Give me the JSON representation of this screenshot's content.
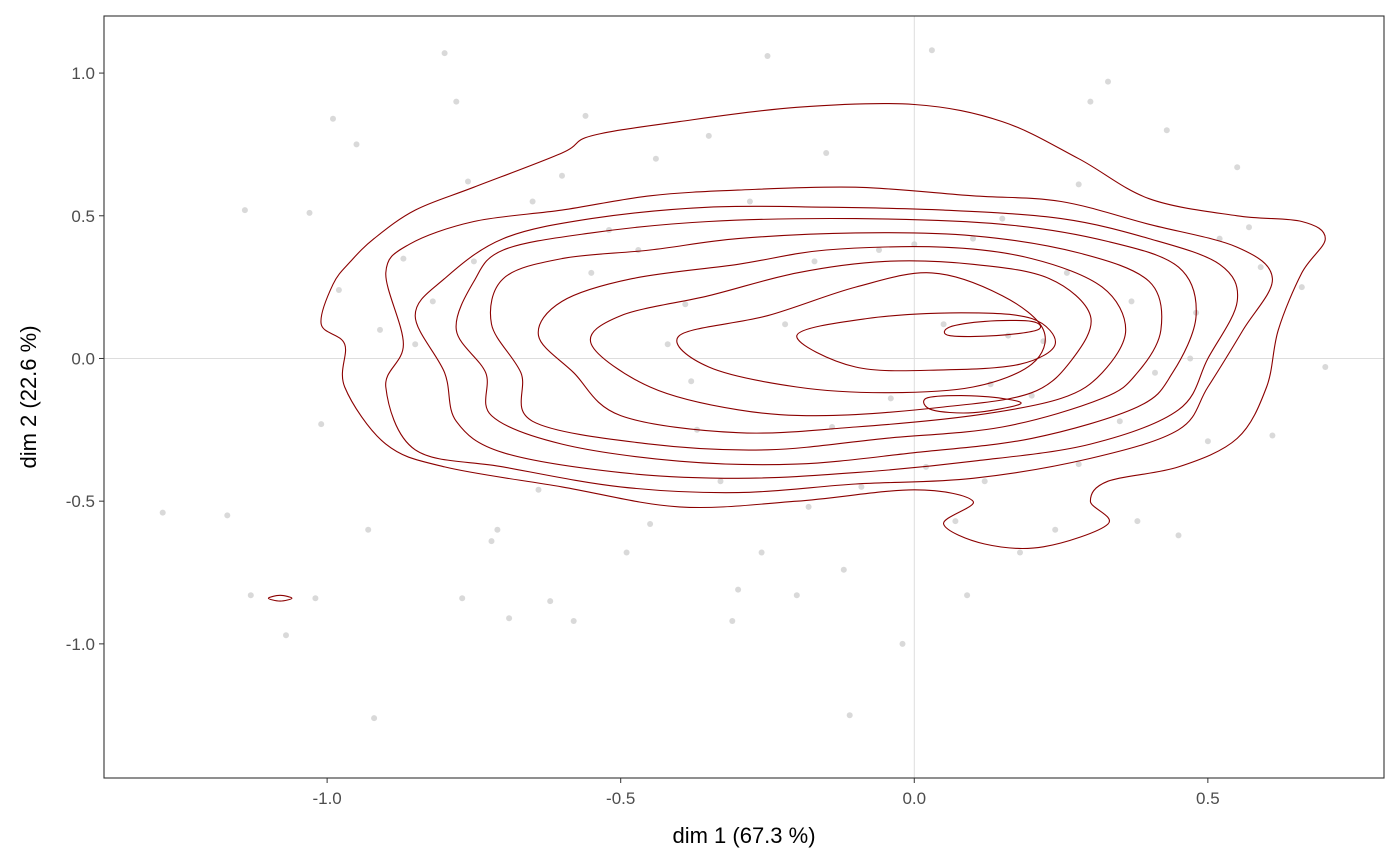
{
  "chart_data": {
    "type": "scatter",
    "title": "",
    "xlabel": "dim 1 (67.3 %)",
    "ylabel": "dim 2 (22.6 %)",
    "xlim": [
      -1.38,
      0.8
    ],
    "ylim": [
      -1.47,
      1.2
    ],
    "x_ticks": [
      -1.0,
      -0.5,
      0.0,
      0.5
    ],
    "x_tick_labels": [
      "-1.0",
      "-0.5",
      "0.0",
      "0.5"
    ],
    "y_ticks": [
      1.0,
      0.5,
      0.0,
      -0.5,
      -1.0
    ],
    "y_tick_labels": [
      "1.0",
      "0.5",
      "0.0",
      "-0.5",
      "-1.0"
    ],
    "reference_lines": {
      "x": 0,
      "y": 0
    },
    "grid": false,
    "colors": {
      "points": "#cccccc",
      "contours": "#8b0000",
      "panel_border": "#333333",
      "reference_line": "#dddddd"
    },
    "points": [
      [
        -1.28,
        -0.54
      ],
      [
        -1.17,
        -0.55
      ],
      [
        -1.14,
        0.52
      ],
      [
        -1.13,
        -0.83
      ],
      [
        -1.07,
        -0.97
      ],
      [
        -1.03,
        0.51
      ],
      [
        -1.02,
        -0.84
      ],
      [
        -1.01,
        -0.23
      ],
      [
        -0.99,
        0.84
      ],
      [
        -0.98,
        0.24
      ],
      [
        -0.93,
        -0.6
      ],
      [
        -0.92,
        -1.26
      ],
      [
        -0.91,
        0.1
      ],
      [
        -0.87,
        0.35
      ],
      [
        -0.82,
        0.2
      ],
      [
        -0.8,
        1.07
      ],
      [
        -0.78,
        0.9
      ],
      [
        -0.77,
        -0.84
      ],
      [
        -0.76,
        0.62
      ],
      [
        -0.75,
        0.34
      ],
      [
        -0.72,
        -0.64
      ],
      [
        -0.71,
        -0.6
      ],
      [
        -0.69,
        -0.91
      ],
      [
        -0.64,
        -0.46
      ],
      [
        -0.62,
        -0.85
      ],
      [
        -0.6,
        0.64
      ],
      [
        -0.58,
        -0.92
      ],
      [
        -0.56,
        0.85
      ],
      [
        -0.55,
        0.3
      ],
      [
        -0.52,
        0.45
      ],
      [
        -0.49,
        -0.68
      ],
      [
        -0.47,
        0.38
      ],
      [
        -0.45,
        -0.58
      ],
      [
        -0.42,
        0.05
      ],
      [
        -0.39,
        0.19
      ],
      [
        -0.37,
        -0.25
      ],
      [
        -0.35,
        0.78
      ],
      [
        -0.33,
        -0.43
      ],
      [
        -0.31,
        -0.92
      ],
      [
        -0.3,
        -0.81
      ],
      [
        -0.28,
        0.55
      ],
      [
        -0.26,
        -0.68
      ],
      [
        -0.25,
        1.06
      ],
      [
        -0.22,
        0.12
      ],
      [
        -0.2,
        -0.83
      ],
      [
        -0.18,
        -0.52
      ],
      [
        -0.17,
        0.34
      ],
      [
        -0.14,
        -0.24
      ],
      [
        -0.12,
        -0.74
      ],
      [
        -0.11,
        -1.25
      ],
      [
        -0.09,
        -0.45
      ],
      [
        -0.06,
        0.38
      ],
      [
        -0.04,
        -0.14
      ],
      [
        -0.02,
        -1.0
      ],
      [
        0.0,
        0.4
      ],
      [
        0.02,
        -0.38
      ],
      [
        0.03,
        1.08
      ],
      [
        0.05,
        0.12
      ],
      [
        0.07,
        -0.57
      ],
      [
        0.09,
        -0.83
      ],
      [
        0.1,
        0.42
      ],
      [
        0.13,
        -0.09
      ],
      [
        0.15,
        0.49
      ],
      [
        0.16,
        0.08
      ],
      [
        0.18,
        -0.68
      ],
      [
        0.2,
        -0.13
      ],
      [
        0.22,
        0.06
      ],
      [
        0.24,
        -0.6
      ],
      [
        0.26,
        0.3
      ],
      [
        0.28,
        -0.37
      ],
      [
        0.3,
        0.9
      ],
      [
        0.33,
        0.97
      ],
      [
        0.35,
        -0.22
      ],
      [
        0.37,
        0.2
      ],
      [
        0.38,
        -0.57
      ],
      [
        0.41,
        -0.05
      ],
      [
        0.43,
        0.8
      ],
      [
        0.45,
        -0.62
      ],
      [
        0.47,
        0.0
      ],
      [
        0.5,
        -0.29
      ],
      [
        0.52,
        0.42
      ],
      [
        0.55,
        0.67
      ],
      [
        0.57,
        0.46
      ],
      [
        0.59,
        0.32
      ],
      [
        0.61,
        -0.27
      ],
      [
        0.66,
        0.25
      ],
      [
        0.7,
        -0.03
      ],
      [
        -0.95,
        0.75
      ],
      [
        -0.85,
        0.05
      ],
      [
        -0.65,
        0.55
      ],
      [
        -0.44,
        0.7
      ],
      [
        -0.38,
        -0.08
      ],
      [
        -0.15,
        0.72
      ],
      [
        0.12,
        -0.43
      ],
      [
        0.28,
        0.61
      ],
      [
        0.48,
        0.16
      ]
    ],
    "contours": [
      [
        [
          -1.08,
          -0.83
        ],
        [
          -1.06,
          -0.84
        ],
        [
          -1.08,
          -0.85
        ],
        [
          -1.1,
          -0.84
        ]
      ],
      [
        [
          -1.01,
          0.12
        ],
        [
          -0.99,
          0.26
        ],
        [
          -0.96,
          0.34
        ],
        [
          -0.92,
          0.42
        ],
        [
          -0.85,
          0.52
        ],
        [
          -0.75,
          0.6
        ],
        [
          -0.6,
          0.72
        ],
        [
          -0.55,
          0.78
        ],
        [
          -0.4,
          0.83
        ],
        [
          -0.2,
          0.88
        ],
        [
          0.0,
          0.89
        ],
        [
          0.15,
          0.83
        ],
        [
          0.28,
          0.7
        ],
        [
          0.4,
          0.56
        ],
        [
          0.55,
          0.5
        ],
        [
          0.66,
          0.48
        ],
        [
          0.7,
          0.42
        ],
        [
          0.66,
          0.3
        ],
        [
          0.62,
          0.1
        ],
        [
          0.6,
          -0.1
        ],
        [
          0.55,
          -0.28
        ],
        [
          0.45,
          -0.38
        ],
        [
          0.33,
          -0.43
        ],
        [
          0.3,
          -0.5
        ],
        [
          0.33,
          -0.58
        ],
        [
          0.22,
          -0.66
        ],
        [
          0.12,
          -0.65
        ],
        [
          0.05,
          -0.58
        ],
        [
          0.1,
          -0.5
        ],
        [
          0.0,
          -0.46
        ],
        [
          -0.2,
          -0.5
        ],
        [
          -0.4,
          -0.52
        ],
        [
          -0.6,
          -0.45
        ],
        [
          -0.8,
          -0.38
        ],
        [
          -0.9,
          -0.3
        ],
        [
          -0.97,
          -0.1
        ],
        [
          -0.97,
          0.05
        ],
        [
          -1.01,
          0.12
        ]
      ],
      [
        [
          -0.9,
          0.3
        ],
        [
          -0.86,
          0.4
        ],
        [
          -0.75,
          0.48
        ],
        [
          -0.6,
          0.52
        ],
        [
          -0.45,
          0.57
        ],
        [
          -0.3,
          0.59
        ],
        [
          -0.1,
          0.6
        ],
        [
          0.1,
          0.57
        ],
        [
          0.25,
          0.55
        ],
        [
          0.4,
          0.47
        ],
        [
          0.55,
          0.39
        ],
        [
          0.61,
          0.28
        ],
        [
          0.56,
          0.1
        ],
        [
          0.5,
          -0.1
        ],
        [
          0.45,
          -0.25
        ],
        [
          0.3,
          -0.35
        ],
        [
          0.1,
          -0.42
        ],
        [
          -0.1,
          -0.44
        ],
        [
          -0.3,
          -0.47
        ],
        [
          -0.5,
          -0.45
        ],
        [
          -0.7,
          -0.38
        ],
        [
          -0.85,
          -0.32
        ],
        [
          -0.9,
          -0.1
        ],
        [
          -0.87,
          0.05
        ],
        [
          -0.9,
          0.3
        ]
      ],
      [
        [
          -0.8,
          0.28
        ],
        [
          -0.7,
          0.42
        ],
        [
          -0.55,
          0.49
        ],
        [
          -0.35,
          0.53
        ],
        [
          -0.15,
          0.53
        ],
        [
          0.05,
          0.52
        ],
        [
          0.25,
          0.49
        ],
        [
          0.4,
          0.42
        ],
        [
          0.52,
          0.33
        ],
        [
          0.55,
          0.2
        ],
        [
          0.5,
          0.0
        ],
        [
          0.45,
          -0.18
        ],
        [
          0.3,
          -0.3
        ],
        [
          0.1,
          -0.36
        ],
        [
          -0.1,
          -0.4
        ],
        [
          -0.3,
          -0.42
        ],
        [
          -0.5,
          -0.4
        ],
        [
          -0.7,
          -0.33
        ],
        [
          -0.78,
          -0.22
        ],
        [
          -0.8,
          -0.05
        ],
        [
          -0.85,
          0.15
        ],
        [
          -0.8,
          0.28
        ]
      ],
      [
        [
          -0.75,
          0.27
        ],
        [
          -0.7,
          0.38
        ],
        [
          -0.55,
          0.44
        ],
        [
          -0.35,
          0.48
        ],
        [
          -0.1,
          0.49
        ],
        [
          0.15,
          0.47
        ],
        [
          0.33,
          0.41
        ],
        [
          0.45,
          0.32
        ],
        [
          0.48,
          0.15
        ],
        [
          0.44,
          -0.05
        ],
        [
          0.38,
          -0.17
        ],
        [
          0.2,
          -0.28
        ],
        [
          0.0,
          -0.33
        ],
        [
          -0.2,
          -0.37
        ],
        [
          -0.4,
          -0.36
        ],
        [
          -0.6,
          -0.3
        ],
        [
          -0.72,
          -0.2
        ],
        [
          -0.73,
          -0.05
        ],
        [
          -0.78,
          0.1
        ],
        [
          -0.75,
          0.27
        ]
      ],
      [
        [
          -0.7,
          0.28
        ],
        [
          -0.6,
          0.35
        ],
        [
          -0.45,
          0.38
        ],
        [
          -0.3,
          0.42
        ],
        [
          -0.1,
          0.44
        ],
        [
          0.1,
          0.43
        ],
        [
          0.28,
          0.37
        ],
        [
          0.4,
          0.27
        ],
        [
          0.42,
          0.1
        ],
        [
          0.38,
          -0.05
        ],
        [
          0.32,
          -0.14
        ],
        [
          0.15,
          -0.24
        ],
        [
          -0.05,
          -0.28
        ],
        [
          -0.25,
          -0.32
        ],
        [
          -0.45,
          -0.3
        ],
        [
          -0.65,
          -0.22
        ],
        [
          -0.67,
          -0.05
        ],
        [
          -0.72,
          0.12
        ],
        [
          -0.7,
          0.28
        ]
      ],
      [
        [
          -0.6,
          0.2
        ],
        [
          -0.48,
          0.28
        ],
        [
          -0.3,
          0.33
        ],
        [
          -0.15,
          0.38
        ],
        [
          0.05,
          0.39
        ],
        [
          0.2,
          0.35
        ],
        [
          0.32,
          0.25
        ],
        [
          0.36,
          0.1
        ],
        [
          0.32,
          -0.05
        ],
        [
          0.25,
          -0.14
        ],
        [
          0.1,
          -0.2
        ],
        [
          -0.1,
          -0.24
        ],
        [
          -0.3,
          -0.26
        ],
        [
          -0.5,
          -0.2
        ],
        [
          -0.58,
          -0.05
        ],
        [
          -0.64,
          0.08
        ],
        [
          -0.6,
          0.2
        ]
      ],
      [
        [
          -0.5,
          0.15
        ],
        [
          -0.35,
          0.22
        ],
        [
          -0.2,
          0.3
        ],
        [
          -0.05,
          0.34
        ],
        [
          0.1,
          0.33
        ],
        [
          0.23,
          0.28
        ],
        [
          0.3,
          0.15
        ],
        [
          0.27,
          0.0
        ],
        [
          0.2,
          -0.12
        ],
        [
          0.05,
          -0.17
        ],
        [
          -0.15,
          -0.2
        ],
        [
          -0.3,
          -0.18
        ],
        [
          -0.45,
          -0.1
        ],
        [
          -0.55,
          0.05
        ],
        [
          -0.5,
          0.15
        ]
      ],
      [
        [
          -0.4,
          0.08
        ],
        [
          -0.25,
          0.15
        ],
        [
          -0.1,
          0.25
        ],
        [
          0.03,
          0.3
        ],
        [
          0.15,
          0.22
        ],
        [
          0.22,
          0.1
        ],
        [
          0.2,
          -0.02
        ],
        [
          0.1,
          -0.1
        ],
        [
          -0.05,
          -0.12
        ],
        [
          -0.2,
          -0.1
        ],
        [
          -0.35,
          -0.03
        ],
        [
          -0.4,
          0.08
        ]
      ],
      [
        [
          -0.2,
          0.08
        ],
        [
          -0.08,
          0.14
        ],
        [
          0.08,
          0.16
        ],
        [
          0.2,
          0.14
        ],
        [
          0.24,
          0.05
        ],
        [
          0.18,
          -0.02
        ],
        [
          0.05,
          -0.04
        ],
        [
          -0.1,
          -0.03
        ],
        [
          -0.2,
          0.08
        ]
      ],
      [
        [
          0.06,
          0.11
        ],
        [
          0.12,
          0.13
        ],
        [
          0.2,
          0.13
        ],
        [
          0.21,
          0.1
        ],
        [
          0.14,
          0.08
        ],
        [
          0.06,
          0.08
        ],
        [
          0.06,
          0.11
        ]
      ],
      [
        [
          0.02,
          -0.14
        ],
        [
          0.08,
          -0.13
        ],
        [
          0.15,
          -0.14
        ],
        [
          0.18,
          -0.16
        ],
        [
          0.1,
          -0.19
        ],
        [
          0.03,
          -0.18
        ],
        [
          0.02,
          -0.14
        ]
      ]
    ]
  }
}
